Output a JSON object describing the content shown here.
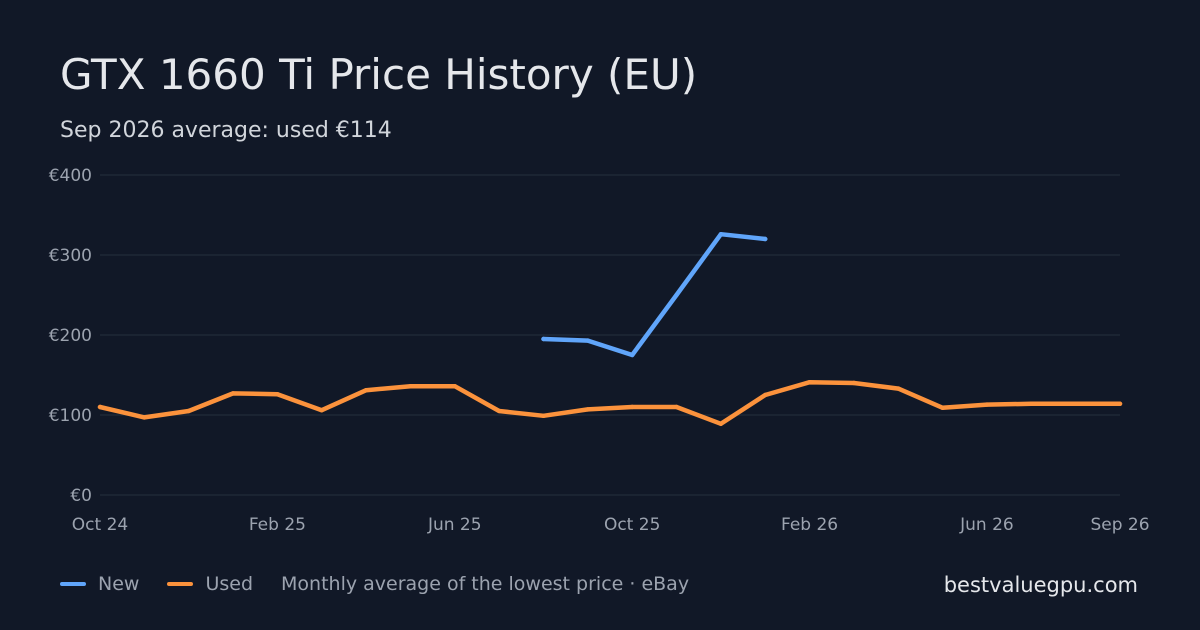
{
  "title": "GTX 1660 Ti Price History (EU)",
  "subtitle": "Sep 2026 average: used €114",
  "site": "bestvaluegpu.com",
  "legend": {
    "new_label": "New",
    "used_label": "Used",
    "note": "Monthly average of the lowest price · eBay"
  },
  "colors": {
    "background": "#111827",
    "new": "#60a5fa",
    "used": "#fb923c",
    "grid": "#1f2937",
    "tick": "#9ca3af"
  },
  "chart_data": {
    "type": "line",
    "x": [
      "Oct 24",
      "Nov 24",
      "Dec 24",
      "Jan 25",
      "Feb 25",
      "Mar 25",
      "Apr 25",
      "May 25",
      "Jun 25",
      "Jul 25",
      "Aug 25",
      "Sep 25",
      "Oct 25",
      "Nov 25",
      "Dec 25",
      "Jan 26",
      "Feb 26",
      "Mar 26",
      "Apr 26",
      "May 26",
      "Jun 26",
      "Jul 26",
      "Aug 26",
      "Sep 26"
    ],
    "x_tick_labels": [
      "Oct 24",
      "Feb 25",
      "Jun 25",
      "Oct 25",
      "Feb 26",
      "Jun 26",
      "Sep 26"
    ],
    "y_tick_labels": [
      "€0",
      "€100",
      "€200",
      "€300",
      "€400"
    ],
    "y_ticks": [
      0,
      100,
      200,
      300,
      400
    ],
    "ylim": [
      0,
      400
    ],
    "grid": true,
    "series": [
      {
        "name": "New",
        "values": [
          null,
          null,
          null,
          null,
          null,
          null,
          null,
          null,
          null,
          null,
          195,
          193,
          175,
          250,
          326,
          320,
          null,
          null,
          null,
          null,
          null,
          null,
          null,
          null
        ]
      },
      {
        "name": "Used",
        "values": [
          110,
          97,
          105,
          127,
          126,
          106,
          131,
          136,
          136,
          105,
          99,
          107,
          110,
          110,
          89,
          125,
          141,
          140,
          133,
          109,
          113,
          114,
          114,
          114
        ]
      }
    ]
  }
}
